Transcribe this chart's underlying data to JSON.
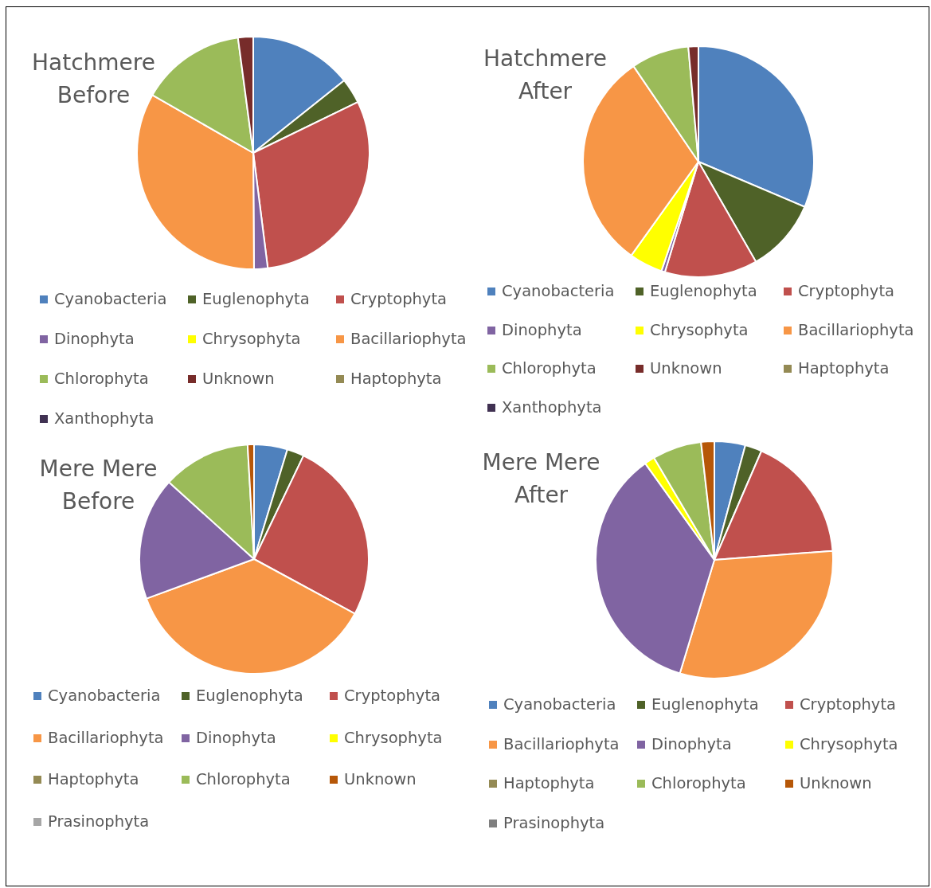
{
  "chart_data": [
    {
      "type": "pie",
      "title": "Hatchmere Before",
      "legend": "bottom",
      "categories": [
        "Cyanobacteria",
        "Euglenophyta",
        "Cryptophyta",
        "Dinophyta",
        "Chrysophyta",
        "Bacillariophyta",
        "Chlorophyta",
        "Unknown",
        "Haptophyta",
        "Xanthophyta"
      ],
      "values": [
        14.3,
        3.5,
        30.2,
        1.9,
        0,
        33.4,
        14.6,
        2.1,
        0,
        0
      ],
      "colors": [
        "#4f81bd",
        "#4f6228",
        "#c0504d",
        "#8064a2",
        "#ffff00",
        "#f79646",
        "#9bbb59",
        "#772c2a",
        "#948a54",
        "#403152"
      ]
    },
    {
      "type": "pie",
      "title": "Hatchmere After",
      "legend": "bottom",
      "categories": [
        "Cyanobacteria",
        "Euglenophyta",
        "Cryptophyta",
        "Dinophyta",
        "Chrysophyta",
        "Bacillariophyta",
        "Chlorophyta",
        "Unknown",
        "Haptophyta",
        "Xanthophyta"
      ],
      "values": [
        31.4,
        10.3,
        13.0,
        0.5,
        4.7,
        30.6,
        8.1,
        1.4,
        0,
        0
      ],
      "colors": [
        "#4f81bd",
        "#4f6228",
        "#c0504d",
        "#8064a2",
        "#ffff00",
        "#f79646",
        "#9bbb59",
        "#772c2a",
        "#948a54",
        "#403152"
      ]
    },
    {
      "type": "pie",
      "title": "Mere Mere Before",
      "legend": "bottom",
      "categories": [
        "Cyanobacteria",
        "Euglenophyta",
        "Cryptophyta",
        "Bacillariophyta",
        "Dinophyta",
        "Chrysophyta",
        "Haptophyta",
        "Chlorophyta",
        "Unknown",
        "Prasinophyta"
      ],
      "values": [
        4.7,
        2.4,
        25.8,
        36.5,
        17.3,
        0,
        0,
        12.4,
        0.9,
        0
      ],
      "colors": [
        "#4f81bd",
        "#4f6228",
        "#c0504d",
        "#f79646",
        "#8064a2",
        "#ffff00",
        "#948a54",
        "#9bbb59",
        "#b65708",
        "#a6a6a6"
      ]
    },
    {
      "type": "pie",
      "title": "Mere Mere After",
      "legend": "bottom",
      "categories": [
        "Cyanobacteria",
        "Euglenophyta",
        "Cryptophyta",
        "Bacillariophyta",
        "Dinophyta",
        "Chrysophyta",
        "Haptophyta",
        "Chlorophyta",
        "Unknown",
        "Prasinophyta"
      ],
      "values": [
        4.2,
        2.3,
        17.3,
        30.9,
        35.4,
        1.4,
        0,
        6.7,
        1.8,
        0
      ],
      "colors": [
        "#4f81bd",
        "#4f6228",
        "#c0504d",
        "#f79646",
        "#8064a2",
        "#ffff00",
        "#948a54",
        "#9bbb59",
        "#b65708",
        "#7f7f7f"
      ]
    }
  ]
}
